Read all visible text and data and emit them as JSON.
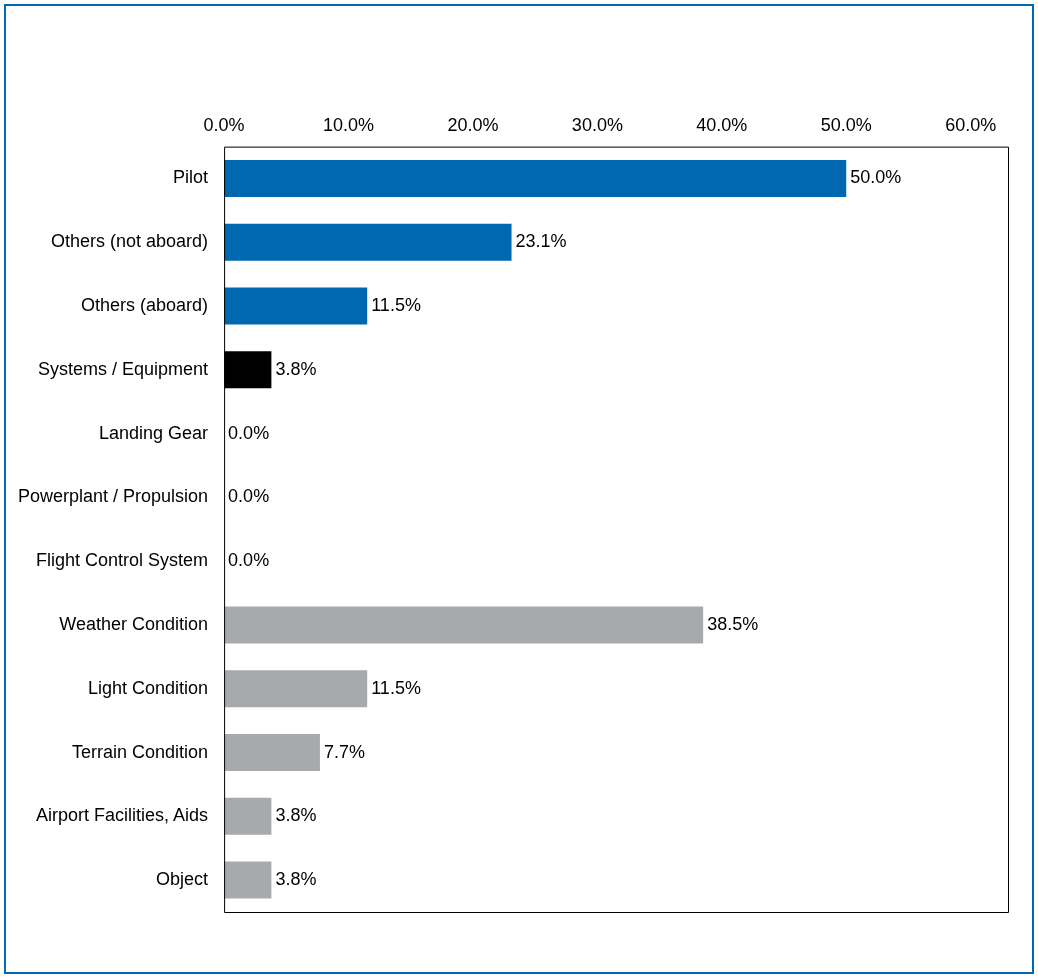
{
  "chart_data": {
    "type": "bar",
    "orientation": "horizontal",
    "categories": [
      "Pilot",
      "Others (not aboard)",
      "Others (aboard)",
      "Systems / Equipment",
      "Landing Gear",
      "Powerplant / Propulsion",
      "Flight Control System",
      "Weather Condition",
      "Light Condition",
      "Terrain Condition",
      "Airport Facilities, Aids",
      "Object"
    ],
    "values": [
      50.0,
      23.1,
      11.5,
      3.8,
      0.0,
      0.0,
      0.0,
      38.5,
      11.5,
      7.7,
      3.8,
      3.8
    ],
    "colors": [
      "#0067b1",
      "#0067b1",
      "#0067b1",
      "#000000",
      "#a7a9ac",
      "#a7a9ac",
      "#a7a9ac",
      "#a7a9ac",
      "#a7a9ac",
      "#a7a9ac",
      "#a7a9ac",
      "#a7a9ac"
    ],
    "value_labels": [
      "50.0%",
      "23.1%",
      "11.5%",
      "3.8%",
      "0.0%",
      "0.0%",
      "0.0%",
      "38.5%",
      "11.5%",
      "7.7%",
      "3.8%",
      "3.8%"
    ],
    "xlim": [
      0,
      63
    ],
    "xticks": [
      {
        "value": 0,
        "label": "0.0%"
      },
      {
        "value": 10,
        "label": "10.0%"
      },
      {
        "value": 20,
        "label": "20.0%"
      },
      {
        "value": 30,
        "label": "30.0%"
      },
      {
        "value": 40,
        "label": "40.0%"
      },
      {
        "value": 50,
        "label": "50.0%"
      },
      {
        "value": 60,
        "label": "60.0%"
      }
    ],
    "grid": false,
    "legend": false
  }
}
